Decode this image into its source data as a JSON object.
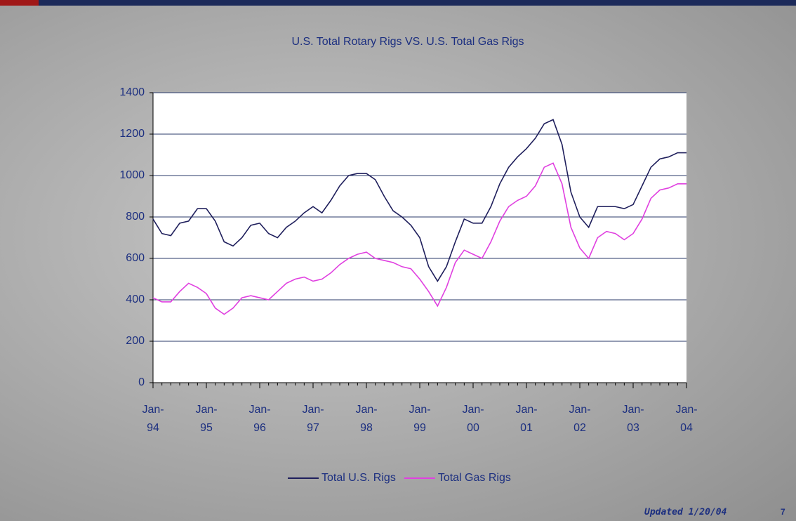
{
  "chart_data": {
    "type": "line",
    "title": "U.S. Total Rotary Rigs VS. U.S. Total Gas Rigs",
    "categories": [
      "Jan-94",
      null,
      null,
      null,
      null,
      null,
      "Jan-95",
      null,
      null,
      null,
      null,
      null,
      "Jan-96",
      null,
      null,
      null,
      null,
      null,
      "Jan-97",
      null,
      null,
      null,
      null,
      null,
      "Jan-98",
      null,
      null,
      null,
      null,
      null,
      "Jan-99",
      null,
      null,
      null,
      null,
      null,
      "Jan-00",
      null,
      null,
      null,
      null,
      null,
      "Jan-01",
      null,
      null,
      null,
      null,
      null,
      "Jan-02",
      null,
      null,
      null,
      null,
      null,
      "Jan-03",
      null,
      null,
      null,
      null,
      null,
      "Jan-04"
    ],
    "series": [
      {
        "name": "Total U.S. Rigs",
        "color": "#1f1f5c",
        "values": [
          790,
          720,
          710,
          770,
          780,
          840,
          840,
          780,
          680,
          660,
          700,
          760,
          770,
          720,
          700,
          750,
          780,
          820,
          850,
          820,
          880,
          950,
          1000,
          1010,
          1010,
          980,
          900,
          830,
          800,
          760,
          700,
          560,
          490,
          560,
          680,
          790,
          770,
          770,
          850,
          960,
          1040,
          1090,
          1130,
          1180,
          1250,
          1270,
          1150,
          920,
          800,
          750,
          850,
          850,
          850,
          840,
          860,
          950,
          1040,
          1080,
          1090,
          1110,
          1110
        ]
      },
      {
        "name": "Total Gas Rigs",
        "color": "#e040e0",
        "values": [
          410,
          390,
          390,
          440,
          480,
          460,
          430,
          360,
          330,
          360,
          410,
          420,
          410,
          400,
          440,
          480,
          500,
          510,
          490,
          500,
          530,
          570,
          600,
          620,
          630,
          600,
          590,
          580,
          560,
          550,
          500,
          440,
          370,
          460,
          580,
          640,
          620,
          600,
          680,
          780,
          850,
          880,
          900,
          950,
          1040,
          1060,
          960,
          750,
          650,
          600,
          700,
          730,
          720,
          690,
          720,
          790,
          890,
          930,
          940,
          960,
          960
        ]
      }
    ],
    "ylim": [
      0,
      1400
    ],
    "yticks": [
      0,
      200,
      400,
      600,
      800,
      1000,
      1200,
      1400
    ],
    "grid": true,
    "legend": "bottom"
  },
  "footer": {
    "updated": "Updated 1/20/04",
    "page": "7"
  }
}
